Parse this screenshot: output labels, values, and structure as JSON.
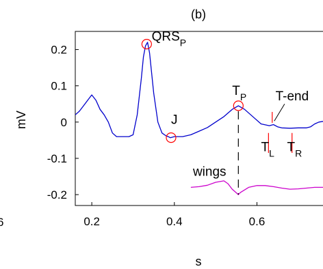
{
  "chart_data": {
    "type": "line",
    "title": "(b)",
    "xlabel": "s",
    "ylabel": "mV",
    "xlim": [
      0.16,
      0.76
    ],
    "ylim": [
      -0.23,
      0.25
    ],
    "xticks": [
      {
        "value": 0.2,
        "label": "0.2"
      },
      {
        "value": 0.4,
        "label": "0.4"
      },
      {
        "value": 0.6,
        "label": "0.6"
      }
    ],
    "yticks": [
      {
        "value": 0.2,
        "label": "0.2"
      },
      {
        "value": 0.1,
        "label": "0.1"
      },
      {
        "value": 0,
        "label": "0"
      },
      {
        "value": -0.1,
        "label": "-0.1"
      },
      {
        "value": -0.2,
        "label": "-0.2"
      }
    ],
    "left_edge_fragment": "6",
    "grid": false,
    "series": [
      {
        "color": "#0000cc",
        "x": [
          0.16,
          0.17,
          0.18,
          0.19,
          0.2,
          0.21,
          0.22,
          0.23,
          0.24,
          0.25,
          0.26,
          0.27,
          0.28,
          0.29,
          0.3,
          0.31,
          0.32,
          0.325,
          0.33,
          0.335,
          0.34,
          0.35,
          0.36,
          0.37,
          0.38,
          0.385,
          0.39,
          0.4,
          0.42,
          0.44,
          0.46,
          0.48,
          0.5,
          0.52,
          0.54,
          0.555,
          0.57,
          0.59,
          0.61,
          0.63,
          0.64,
          0.65,
          0.66,
          0.68,
          0.7,
          0.72,
          0.73,
          0.74,
          0.75,
          0.76
        ],
        "y": [
          0.02,
          0.03,
          0.045,
          0.06,
          0.075,
          0.06,
          0.035,
          0.02,
          0.0,
          -0.03,
          -0.04,
          -0.04,
          -0.04,
          -0.04,
          -0.035,
          0.02,
          0.12,
          0.18,
          0.21,
          0.22,
          0.19,
          0.08,
          0.0,
          -0.03,
          -0.038,
          -0.04,
          -0.043,
          -0.04,
          -0.04,
          -0.035,
          -0.025,
          -0.015,
          0.0,
          0.015,
          0.035,
          0.045,
          0.035,
          0.015,
          -0.005,
          -0.01,
          -0.007,
          -0.013,
          -0.016,
          -0.017,
          -0.016,
          -0.016,
          -0.013,
          -0.005,
          0.0,
          0.002
        ]
      },
      {
        "name": "wings",
        "color": "#cc00cc",
        "x": [
          0.44,
          0.46,
          0.48,
          0.5,
          0.52,
          0.53,
          0.54,
          0.55,
          0.555,
          0.56,
          0.58,
          0.6,
          0.62,
          0.64,
          0.66,
          0.68,
          0.7,
          0.72,
          0.74,
          0.76
        ],
        "y": [
          -0.18,
          -0.178,
          -0.174,
          -0.166,
          -0.162,
          -0.17,
          -0.185,
          -0.195,
          -0.2,
          -0.194,
          -0.18,
          -0.175,
          -0.175,
          -0.178,
          -0.182,
          -0.185,
          -0.184,
          -0.182,
          -0.18,
          -0.18
        ]
      }
    ],
    "markers": [
      {
        "x": 0.333,
        "y": 0.215,
        "color": "#ff0000"
      },
      {
        "x": 0.392,
        "y": -0.043,
        "color": "#ff0000"
      },
      {
        "x": 0.555,
        "y": 0.045,
        "color": "#ff0000"
      }
    ],
    "vlines": [
      {
        "x": 0.555,
        "y1": 0.03,
        "y2": -0.2,
        "color": "#000000",
        "dash": "12,8"
      },
      {
        "x": 0.628,
        "y1": -0.03,
        "y2": -0.085,
        "color": "#ff0000",
        "dash": ""
      },
      {
        "x": 0.685,
        "y1": -0.03,
        "y2": -0.085,
        "color": "#ff0000",
        "dash": ""
      },
      {
        "x": 0.637,
        "y1": 0.028,
        "y2": -0.002,
        "color": "#ff0000",
        "dash": ""
      }
    ],
    "annotations": [
      {
        "text": "QRS",
        "sub": "P",
        "x": 0.345,
        "y": 0.225
      },
      {
        "text": "J",
        "sub": "",
        "x": 0.392,
        "y": -0.005
      },
      {
        "text": "T",
        "sub": "P",
        "x": 0.54,
        "y": 0.075
      },
      {
        "text": "T-end",
        "sub": "",
        "x": 0.645,
        "y": 0.06
      },
      {
        "text": "T",
        "sub": "L",
        "x": 0.61,
        "y": -0.08
      },
      {
        "text": "T",
        "sub": "R",
        "x": 0.673,
        "y": -0.08
      },
      {
        "text": "wings",
        "sub": "",
        "x": 0.445,
        "y": -0.148
      }
    ],
    "pointer": {
      "x1": 0.642,
      "y1": 0.003,
      "x2": 0.667,
      "y2": 0.05
    }
  }
}
